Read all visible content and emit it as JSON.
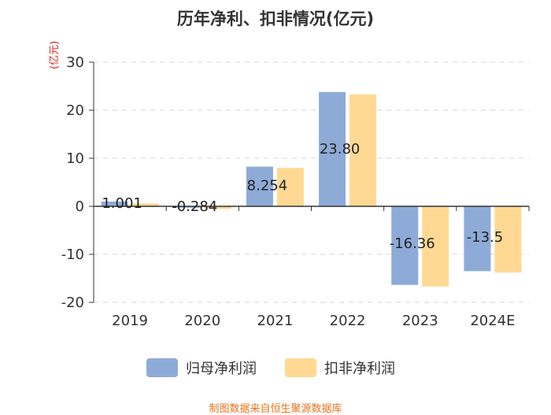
{
  "chart_data": {
    "type": "bar",
    "title": "历年净利、扣非情况(亿元)",
    "ylabel": "(亿元)",
    "categories": [
      "2019",
      "2020",
      "2021",
      "2022",
      "2023",
      "2024E"
    ],
    "series": [
      {
        "name": "归母净利润",
        "color": "#8eabd8",
        "values": [
          1.001,
          -0.284,
          8.254,
          23.8,
          -16.36,
          -13.5
        ],
        "labels": [
          "1.001",
          "-0.284",
          "8.254",
          "23.80",
          "-16.36",
          "-13.5"
        ]
      },
      {
        "name": "扣非净利润",
        "color": "#ffd994",
        "values": [
          0.6,
          -0.55,
          8.0,
          23.3,
          -16.7,
          -13.8
        ]
      }
    ],
    "ylim": [
      -20,
      30
    ],
    "yticks": [
      30,
      20,
      10,
      0,
      -10,
      -20
    ],
    "grid": true,
    "legend": "bottom"
  },
  "source": "制图数据来自恒生聚源数据库"
}
